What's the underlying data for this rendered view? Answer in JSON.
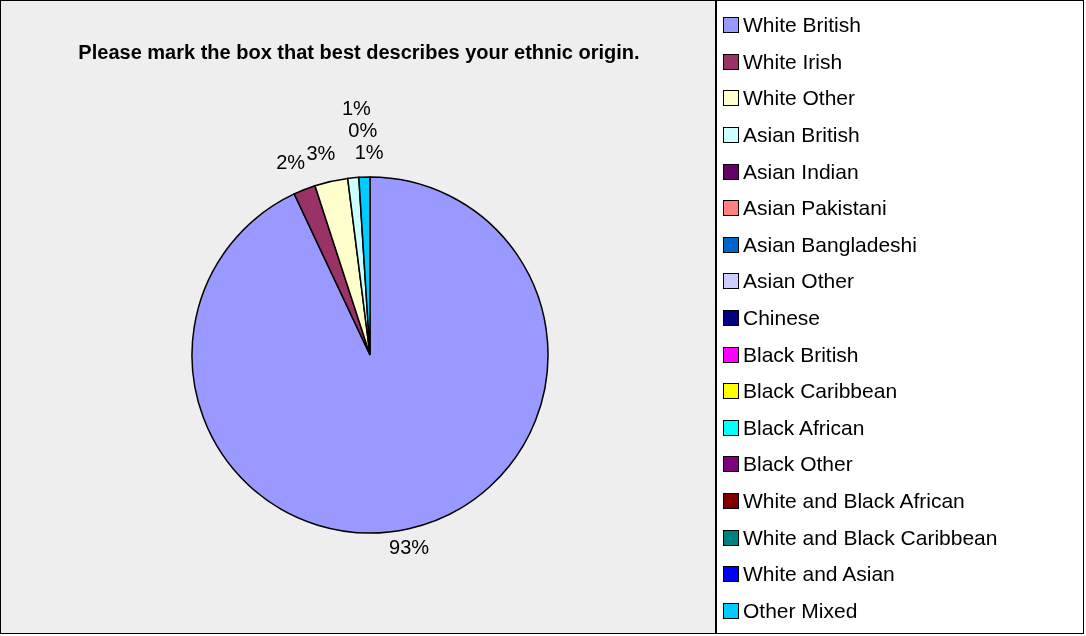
{
  "chart_data": {
    "type": "pie",
    "title": "Please mark the box that best describes your ethnic origin.",
    "categories": [
      "White British",
      "White Irish",
      "White Other",
      "Asian British",
      "Asian Indian",
      "Asian Pakistani",
      "Asian Bangladeshi",
      "Asian Other",
      "Chinese",
      "Black British",
      "Black Caribbean",
      "Black African",
      "Black Other",
      "White and Black African",
      "White and Black Caribbean",
      "White and Asian",
      "Other Mixed"
    ],
    "values": [
      93,
      2,
      3,
      1,
      0,
      0,
      0,
      0,
      0,
      0,
      0,
      0,
      0,
      0,
      0,
      0,
      1
    ],
    "value_labels": [
      "93%",
      "2%",
      "3%",
      "1%",
      null,
      null,
      null,
      null,
      null,
      null,
      null,
      "0%",
      null,
      null,
      null,
      null,
      "1%"
    ],
    "colors": [
      "#9999ff",
      "#993366",
      "#ffffcc",
      "#ccffff",
      "#660066",
      "#ff8080",
      "#0066cc",
      "#ccccff",
      "#000080",
      "#ff00ff",
      "#ffff00",
      "#00ffff",
      "#800080",
      "#800000",
      "#008080",
      "#0000ff",
      "#00ccff"
    ],
    "legend": "right"
  }
}
